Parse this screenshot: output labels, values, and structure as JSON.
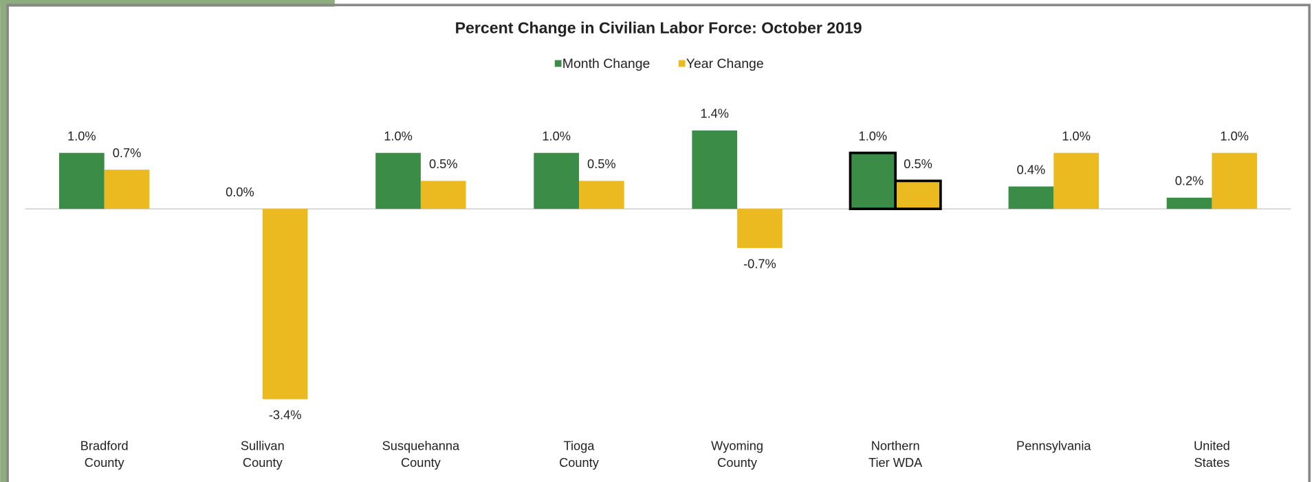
{
  "chart_data": {
    "type": "bar",
    "title": "Percent Change in Civilian Labor Force: October 2019",
    "categories": [
      [
        "Bradford",
        "County"
      ],
      [
        "Sullivan",
        "County"
      ],
      [
        "Susquehanna",
        "County"
      ],
      [
        "Tioga",
        "County"
      ],
      [
        "Wyoming",
        "County"
      ],
      [
        "Northern",
        "Tier WDA"
      ],
      [
        "Pennsylvania"
      ],
      [
        "United",
        "States"
      ]
    ],
    "series": [
      {
        "name": "Month Change",
        "color": "#3a8c46",
        "values": [
          1.0,
          0.0,
          1.0,
          1.0,
          1.4,
          1.0,
          0.4,
          0.2
        ],
        "value_labels": [
          "1.0%",
          "0.0%",
          "1.0%",
          "1.0%",
          "1.4%",
          "1.0%",
          "0.4%",
          "0.2%"
        ]
      },
      {
        "name": "Year Change",
        "color": "#ebb920",
        "values": [
          0.7,
          -3.4,
          0.5,
          0.5,
          -0.7,
          0.5,
          1.0,
          1.0
        ],
        "value_labels": [
          "0.7%",
          "-3.4%",
          "0.5%",
          "0.5%",
          "-0.7%",
          "0.5%",
          "1.0%",
          "1.0%"
        ]
      }
    ],
    "ylim": [
      -3.7,
      2.0
    ],
    "highlight": 5,
    "legend": "top"
  }
}
